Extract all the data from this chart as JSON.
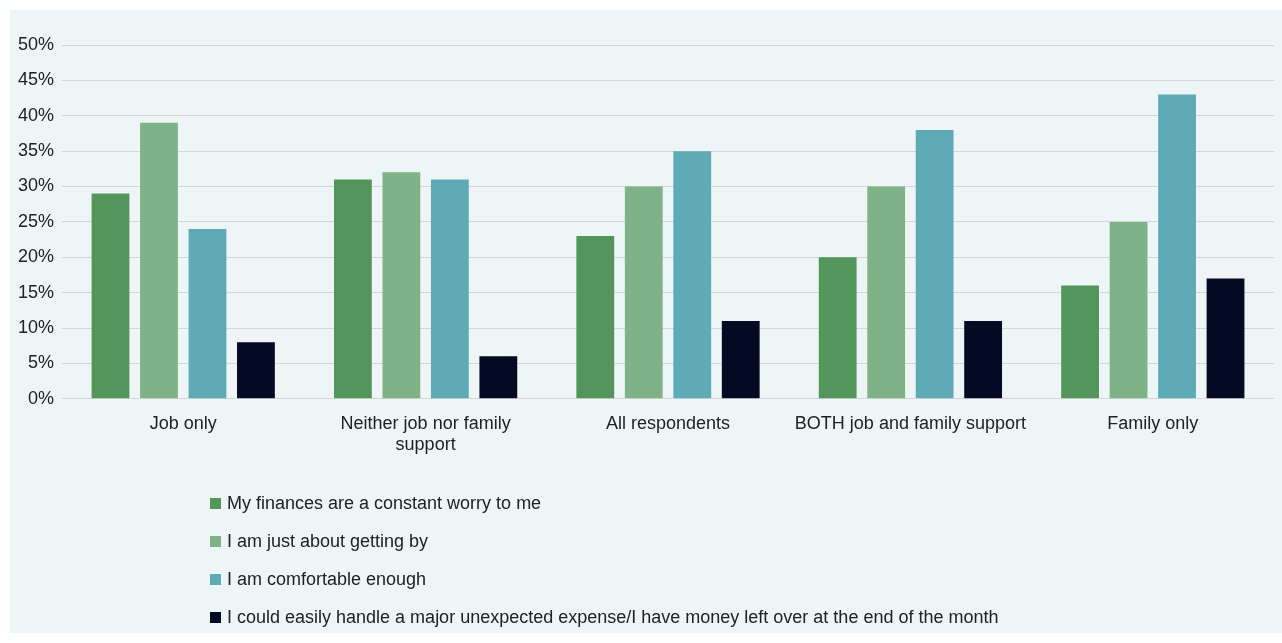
{
  "chart_data": {
    "type": "bar",
    "categories": [
      "Job only",
      "Neither job nor family support",
      "All respondents",
      "BOTH job and family support",
      "Family only"
    ],
    "series": [
      {
        "name": "My finances are a constant worry to me",
        "color": "#53955a",
        "values": [
          29,
          31,
          23,
          20,
          16
        ]
      },
      {
        "name": "I am just about getting by",
        "color": "#7fb286",
        "values": [
          39,
          32,
          30,
          30,
          25
        ]
      },
      {
        "name": "I am comfortable enough",
        "color": "#5fabb5",
        "values": [
          24,
          31,
          35,
          38,
          43
        ]
      },
      {
        "name": "I could easily handle a major unexpected expense/I have money left over at the end of the month",
        "color": "#050a24",
        "values": [
          8,
          6,
          11,
          11,
          17
        ]
      }
    ],
    "ylim": [
      0,
      50
    ],
    "yticks": [
      {
        "value": 0,
        "label": "0%"
      },
      {
        "value": 5,
        "label": "5%"
      },
      {
        "value": 10,
        "label": "10%"
      },
      {
        "value": 15,
        "label": "15%"
      },
      {
        "value": 20,
        "label": "20%"
      },
      {
        "value": 25,
        "label": "25%"
      },
      {
        "value": 30,
        "label": "30%"
      },
      {
        "value": 35,
        "label": "35%"
      },
      {
        "value": 40,
        "label": "40%"
      },
      {
        "value": 45,
        "label": "45%"
      },
      {
        "value": 50,
        "label": "50%"
      }
    ],
    "grid": "y",
    "legend": "bottom"
  }
}
